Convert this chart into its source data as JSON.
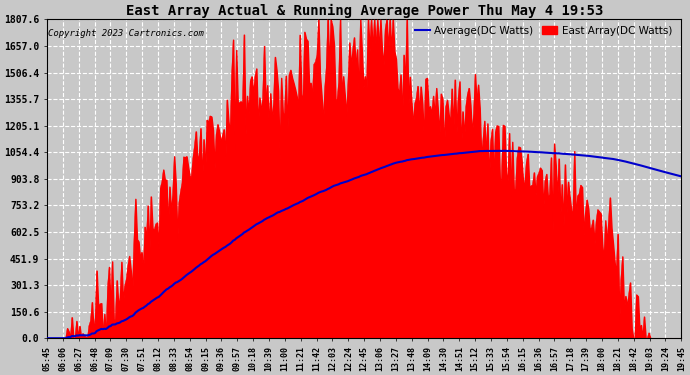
{
  "title": "East Array Actual & Running Average Power Thu May 4 19:53",
  "copyright": "Copyright 2023 Cartronics.com",
  "legend_average": "Average(DC Watts)",
  "legend_east": "East Array(DC Watts)",
  "yticks": [
    0.0,
    150.6,
    301.3,
    451.9,
    602.5,
    753.2,
    903.8,
    1054.4,
    1205.1,
    1355.7,
    1506.4,
    1657.0,
    1807.6
  ],
  "ymax": 1807.6,
  "ymin": 0.0,
  "background_color": "#c8c8c8",
  "plot_bg_color": "#c8c8c8",
  "east_color": "#ff0000",
  "avg_color": "#0000cc",
  "title_color": "#000000",
  "copyright_color": "#000000",
  "grid_color": "#ffffff",
  "xtick_labels": [
    "05:45",
    "06:06",
    "06:27",
    "06:48",
    "07:09",
    "07:30",
    "07:51",
    "08:12",
    "08:33",
    "08:54",
    "09:15",
    "09:36",
    "09:57",
    "10:18",
    "10:39",
    "11:00",
    "11:21",
    "11:42",
    "12:03",
    "12:24",
    "12:45",
    "13:06",
    "13:27",
    "13:48",
    "14:09",
    "14:30",
    "14:51",
    "15:12",
    "15:33",
    "15:54",
    "16:15",
    "16:36",
    "16:57",
    "17:18",
    "17:39",
    "18:00",
    "18:21",
    "18:42",
    "19:03",
    "19:24",
    "19:45"
  ]
}
